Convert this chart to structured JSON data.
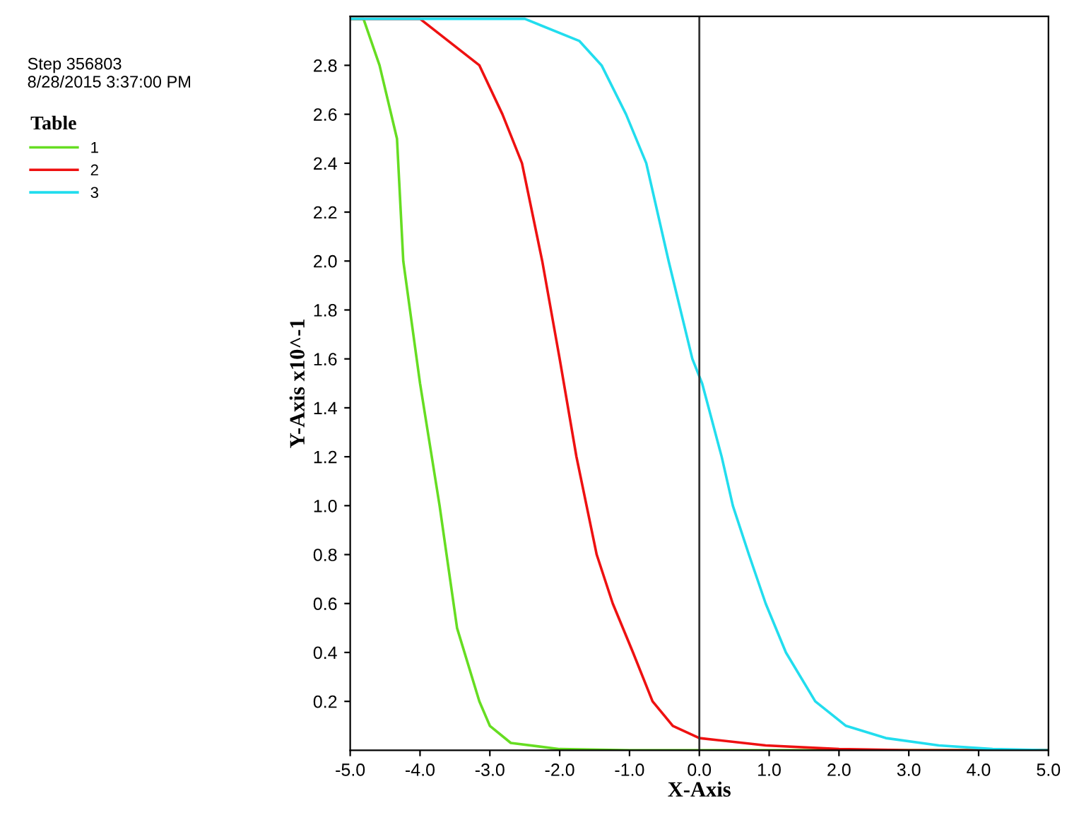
{
  "chart_data": {
    "type": "line",
    "xlabel": "X-Axis",
    "ylabel": "Y-Axis x10^-1",
    "legend_title": "Table",
    "annotations": [
      "Step 356803",
      "8/28/2015 3:37:00 PM"
    ],
    "xlim": [
      -5.0,
      5.0
    ],
    "xticks": [
      {
        "value": -5,
        "label": "-5.0"
      },
      {
        "value": -4,
        "label": "-4.0"
      },
      {
        "value": -3,
        "label": "-3.0"
      },
      {
        "value": -2,
        "label": "-2.0"
      },
      {
        "value": -1,
        "label": "-1.0"
      },
      {
        "value": 0,
        "label": "0.0"
      },
      {
        "value": 1,
        "label": "1.0"
      },
      {
        "value": 2,
        "label": "2.0"
      },
      {
        "value": 3,
        "label": "3.0"
      },
      {
        "value": 4,
        "label": "4.0"
      },
      {
        "value": 5,
        "label": "5.0"
      }
    ],
    "ylim": [
      0,
      3.0
    ],
    "yticks": [
      0.2,
      0.4,
      0.6,
      0.8,
      {
        "value": 1,
        "label": "1.0"
      },
      1.2,
      1.4,
      1.6,
      1.8,
      {
        "value": 2,
        "label": "2.0"
      },
      2.2,
      2.4,
      2.6,
      2.8
    ],
    "grid": false,
    "legend": "left",
    "marker": "none",
    "line_style": "solid",
    "ref_lines": [
      {
        "axis": "x",
        "value": 0,
        "color": "#333333"
      }
    ],
    "series": [
      {
        "name": "1",
        "color": "#66dd22",
        "x": [
          -5.0,
          -4.81,
          -4.58,
          -4.33,
          -4.24,
          -4.0,
          -3.72,
          -3.47,
          -3.15,
          -3.0,
          -2.7,
          -2.0,
          -1.0,
          5.0
        ],
        "values": [
          2.99,
          2.99,
          2.8,
          2.5,
          2.0,
          1.5,
          1.0,
          0.5,
          0.2,
          0.1,
          0.03,
          0.005,
          0.0,
          0.0
        ]
      },
      {
        "name": "2",
        "color": "#ee1111",
        "x": [
          -5.0,
          -4.0,
          -3.15,
          -2.82,
          -2.54,
          -2.25,
          -2.0,
          -1.76,
          -1.47,
          -1.24,
          -0.95,
          -0.67,
          -0.38,
          0.0,
          0.95,
          2.0,
          3.0,
          5.0
        ],
        "values": [
          2.99,
          2.99,
          2.8,
          2.6,
          2.4,
          2.0,
          1.6,
          1.2,
          0.8,
          0.6,
          0.4,
          0.2,
          0.1,
          0.05,
          0.02,
          0.005,
          0.0,
          0.0
        ]
      },
      {
        "name": "3",
        "color": "#22ddee",
        "x": [
          -5.0,
          -2.5,
          -1.72,
          -1.4,
          -1.05,
          -0.76,
          -0.44,
          -0.1,
          0.04,
          0.32,
          0.48,
          0.71,
          0.95,
          1.24,
          1.66,
          2.1,
          2.67,
          3.43,
          4.2,
          5.0
        ],
        "values": [
          2.99,
          2.99,
          2.9,
          2.8,
          2.6,
          2.4,
          2.0,
          1.6,
          1.5,
          1.2,
          1.0,
          0.8,
          0.6,
          0.4,
          0.2,
          0.1,
          0.05,
          0.02,
          0.005,
          0.0
        ]
      }
    ]
  }
}
